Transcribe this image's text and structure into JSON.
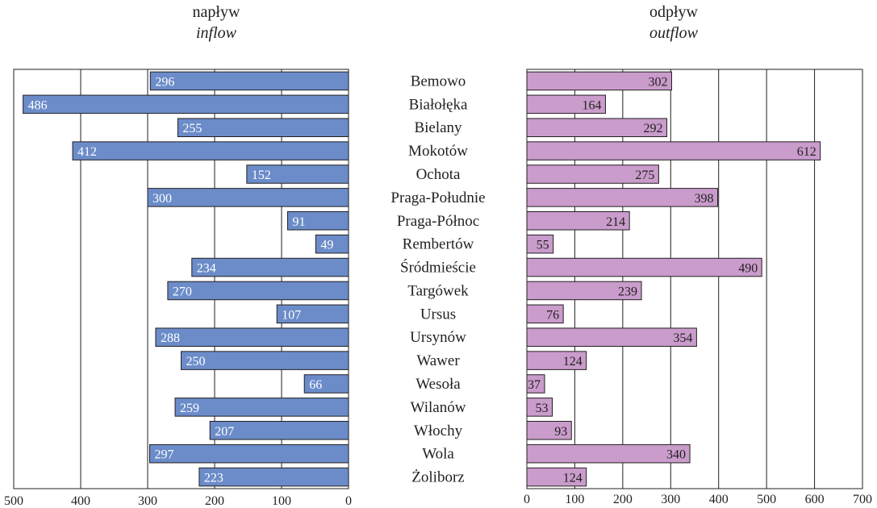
{
  "titles": {
    "left": {
      "pl": "napływ",
      "en": "inflow"
    },
    "right": {
      "pl": "odpływ",
      "en": "outflow"
    }
  },
  "colors": {
    "inflow_bar": "#6b8cc9",
    "outflow_bar": "#c99ccb",
    "bar_border": "#231f20",
    "grid": "#231f20",
    "inflow_label": "#ffffff",
    "outflow_label": "#231f20"
  },
  "chart_data": [
    {
      "type": "bar",
      "orientation": "horizontal",
      "direction": "reversed",
      "title": "napływ inflow",
      "categories": [
        "Bemowo",
        "Białołęka",
        "Bielany",
        "Mokotów",
        "Ochota",
        "Praga-Południe",
        "Praga-Północ",
        "Rembertów",
        "Śródmieście",
        "Targówek",
        "Ursus",
        "Ursynów",
        "Wawer",
        "Wesoła",
        "Wilanów",
        "Włochy",
        "Wola",
        "Żoliborz"
      ],
      "values": [
        296,
        486,
        255,
        412,
        152,
        300,
        91,
        49,
        234,
        270,
        107,
        288,
        250,
        66,
        259,
        207,
        297,
        223
      ],
      "xlim": [
        0,
        500
      ],
      "xticks": [
        500,
        400,
        300,
        200,
        100,
        0
      ],
      "grid": true
    },
    {
      "type": "bar",
      "orientation": "horizontal",
      "title": "odpływ outflow",
      "categories": [
        "Bemowo",
        "Białołęka",
        "Bielany",
        "Mokotów",
        "Ochota",
        "Praga-Południe",
        "Praga-Północ",
        "Rembertów",
        "Śródmieście",
        "Targówek",
        "Ursus",
        "Ursynów",
        "Wawer",
        "Wesoła",
        "Wilanów",
        "Włochy",
        "Wola",
        "Żoliborz"
      ],
      "values": [
        302,
        164,
        292,
        612,
        275,
        398,
        214,
        55,
        490,
        239,
        76,
        354,
        124,
        37,
        53,
        93,
        340,
        124
      ],
      "xlim": [
        0,
        700
      ],
      "xticks": [
        0,
        100,
        200,
        300,
        400,
        500,
        600,
        700
      ],
      "grid": true
    }
  ]
}
